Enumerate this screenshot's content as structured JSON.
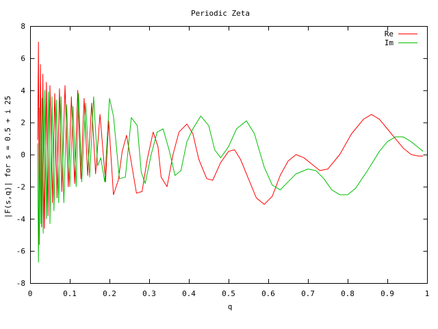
{
  "chart_data": {
    "type": "line",
    "title": "Periodic Zeta",
    "xlabel": "q",
    "ylabel": "|F(s,q)| for s = 0.5 + i 25",
    "xlim": [
      0,
      1
    ],
    "ylim": [
      -8,
      8
    ],
    "x_ticks": [
      0,
      0.1,
      0.2,
      0.3,
      0.4,
      0.5,
      0.6,
      0.7,
      0.8,
      0.9,
      1
    ],
    "x_tick_labels": [
      "0",
      "0.1",
      "0.2",
      "0.3",
      "0.4",
      "0.5",
      "0.6",
      "0.7",
      "0.8",
      "0.9",
      "1"
    ],
    "y_ticks": [
      -8,
      -6,
      -4,
      -2,
      0,
      2,
      4,
      6,
      8
    ],
    "y_tick_labels": [
      "-8",
      "-6",
      "-4",
      "-2",
      "0",
      "2",
      "4",
      "6",
      "8"
    ],
    "grid": false,
    "legend_position": "top-right",
    "series": [
      {
        "name": "Re",
        "color": "#ff0000",
        "points": [
          [
            0.019,
            0.9
          ],
          [
            0.021,
            7.0
          ],
          [
            0.023,
            -5.6
          ],
          [
            0.026,
            5.6
          ],
          [
            0.029,
            -4.5
          ],
          [
            0.032,
            5.0
          ],
          [
            0.036,
            -4.6
          ],
          [
            0.041,
            4.5
          ],
          [
            0.045,
            -3.8
          ],
          [
            0.05,
            4.3
          ],
          [
            0.056,
            -3.0
          ],
          [
            0.062,
            3.8
          ],
          [
            0.068,
            -2.7
          ],
          [
            0.074,
            4.1
          ],
          [
            0.08,
            -2.3
          ],
          [
            0.088,
            4.3
          ],
          [
            0.096,
            -2.0
          ],
          [
            0.104,
            3.6
          ],
          [
            0.112,
            -1.8
          ],
          [
            0.12,
            4.0
          ],
          [
            0.128,
            -1.5
          ],
          [
            0.136,
            3.5
          ],
          [
            0.145,
            -1.3
          ],
          [
            0.155,
            3.2
          ],
          [
            0.165,
            -1.2
          ],
          [
            0.176,
            2.5
          ],
          [
            0.19,
            -1.7
          ],
          [
            0.198,
            2.1
          ],
          [
            0.21,
            -2.5
          ],
          [
            0.222,
            -1.6
          ],
          [
            0.232,
            0.2
          ],
          [
            0.243,
            1.2
          ],
          [
            0.255,
            -0.5
          ],
          [
            0.268,
            -2.4
          ],
          [
            0.282,
            -2.3
          ],
          [
            0.295,
            -0.3
          ],
          [
            0.31,
            1.4
          ],
          [
            0.322,
            0.5
          ],
          [
            0.33,
            -1.4
          ],
          [
            0.345,
            -2.0
          ],
          [
            0.36,
            0.0
          ],
          [
            0.375,
            1.4
          ],
          [
            0.395,
            1.9
          ],
          [
            0.41,
            1.3
          ],
          [
            0.425,
            -0.3
          ],
          [
            0.445,
            -1.5
          ],
          [
            0.46,
            -1.6
          ],
          [
            0.48,
            -0.5
          ],
          [
            0.5,
            0.2
          ],
          [
            0.515,
            0.3
          ],
          [
            0.53,
            -0.3
          ],
          [
            0.55,
            -1.5
          ],
          [
            0.57,
            -2.7
          ],
          [
            0.59,
            -3.1
          ],
          [
            0.61,
            -2.6
          ],
          [
            0.63,
            -1.3
          ],
          [
            0.65,
            -0.4
          ],
          [
            0.67,
            0.0
          ],
          [
            0.69,
            -0.2
          ],
          [
            0.71,
            -0.6
          ],
          [
            0.73,
            -1.0
          ],
          [
            0.75,
            -0.9
          ],
          [
            0.78,
            0.0
          ],
          [
            0.81,
            1.3
          ],
          [
            0.84,
            2.2
          ],
          [
            0.86,
            2.5
          ],
          [
            0.88,
            2.2
          ],
          [
            0.9,
            1.6
          ],
          [
            0.92,
            1.0
          ],
          [
            0.94,
            0.4
          ],
          [
            0.96,
            0.0
          ],
          [
            0.98,
            -0.1
          ],
          [
            0.99,
            -0.1
          ]
        ]
      },
      {
        "name": "Im",
        "color": "#00c000",
        "points": [
          [
            0.019,
            0.7
          ],
          [
            0.021,
            -6.7
          ],
          [
            0.024,
            2.9
          ],
          [
            0.027,
            -4.3
          ],
          [
            0.03,
            3.5
          ],
          [
            0.033,
            -4.9
          ],
          [
            0.037,
            4.0
          ],
          [
            0.041,
            -4.0
          ],
          [
            0.046,
            3.9
          ],
          [
            0.05,
            -4.3
          ],
          [
            0.055,
            3.6
          ],
          [
            0.06,
            -3.5
          ],
          [
            0.066,
            3.4
          ],
          [
            0.072,
            -3.0
          ],
          [
            0.078,
            3.6
          ],
          [
            0.085,
            -3.0
          ],
          [
            0.092,
            3.1
          ],
          [
            0.1,
            -2.0
          ],
          [
            0.108,
            3.0
          ],
          [
            0.116,
            -2.0
          ],
          [
            0.122,
            3.8
          ],
          [
            0.13,
            -1.7
          ],
          [
            0.14,
            3.2
          ],
          [
            0.15,
            -1.4
          ],
          [
            0.16,
            3.6
          ],
          [
            0.17,
            -0.7
          ],
          [
            0.178,
            -0.2
          ],
          [
            0.188,
            -1.7
          ],
          [
            0.2,
            3.5
          ],
          [
            0.21,
            2.4
          ],
          [
            0.225,
            -1.5
          ],
          [
            0.24,
            -1.4
          ],
          [
            0.255,
            2.3
          ],
          [
            0.27,
            1.8
          ],
          [
            0.28,
            -1.1
          ],
          [
            0.29,
            -1.8
          ],
          [
            0.305,
            0.0
          ],
          [
            0.32,
            1.4
          ],
          [
            0.335,
            1.6
          ],
          [
            0.35,
            0.3
          ],
          [
            0.365,
            -1.3
          ],
          [
            0.38,
            -1.0
          ],
          [
            0.395,
            0.8
          ],
          [
            0.41,
            1.6
          ],
          [
            0.43,
            2.4
          ],
          [
            0.45,
            1.8
          ],
          [
            0.465,
            0.3
          ],
          [
            0.48,
            -0.2
          ],
          [
            0.5,
            0.5
          ],
          [
            0.52,
            1.6
          ],
          [
            0.545,
            2.1
          ],
          [
            0.565,
            1.3
          ],
          [
            0.59,
            -0.8
          ],
          [
            0.61,
            -1.9
          ],
          [
            0.63,
            -2.2
          ],
          [
            0.65,
            -1.7
          ],
          [
            0.67,
            -1.2
          ],
          [
            0.7,
            -0.9
          ],
          [
            0.72,
            -1.0
          ],
          [
            0.74,
            -1.5
          ],
          [
            0.76,
            -2.2
          ],
          [
            0.78,
            -2.5
          ],
          [
            0.8,
            -2.5
          ],
          [
            0.82,
            -2.1
          ],
          [
            0.85,
            -1.0
          ],
          [
            0.88,
            0.2
          ],
          [
            0.9,
            0.8
          ],
          [
            0.92,
            1.1
          ],
          [
            0.94,
            1.1
          ],
          [
            0.96,
            0.8
          ],
          [
            0.98,
            0.4
          ],
          [
            0.99,
            0.2
          ]
        ]
      }
    ]
  }
}
